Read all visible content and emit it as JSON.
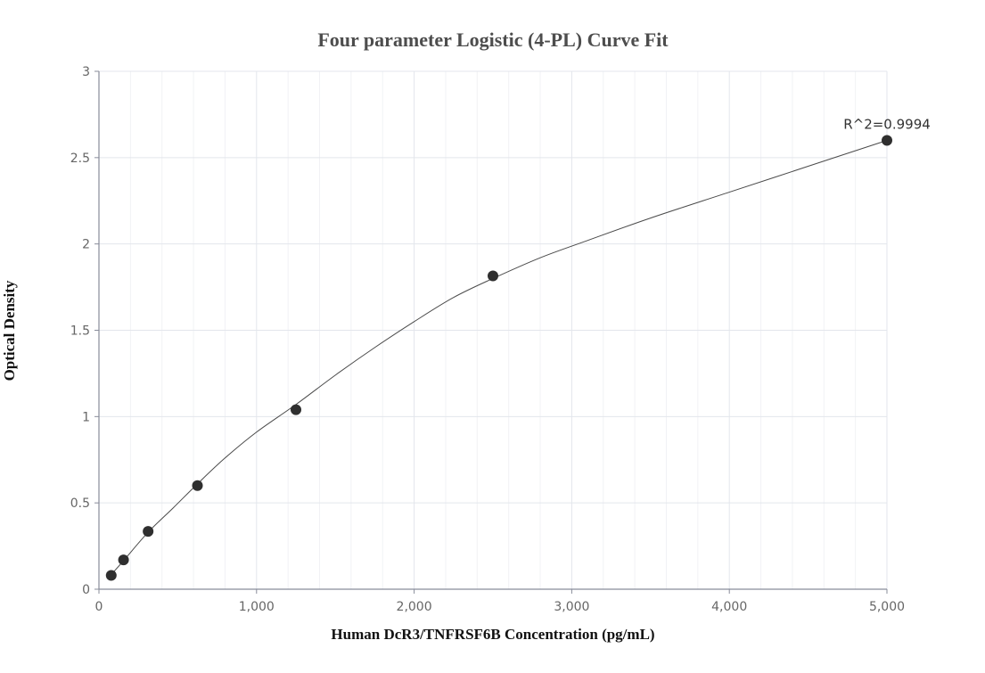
{
  "chart_data": {
    "type": "scatter",
    "title": "Four parameter Logistic (4-PL) Curve Fit",
    "xlabel": "Human DcR3/TNFRSF6B Concentration (pg/mL)",
    "ylabel": "Optical Density",
    "xlim": [
      0,
      5000
    ],
    "ylim": [
      0,
      3
    ],
    "x_ticks": [
      0,
      1000,
      2000,
      3000,
      4000,
      5000
    ],
    "x_tick_labels": [
      "0",
      "1,000",
      "2,000",
      "3,000",
      "4,000",
      "5,000"
    ],
    "y_ticks": [
      0,
      0.5,
      1,
      1.5,
      2,
      2.5,
      3
    ],
    "y_tick_labels": [
      "0",
      "0.5",
      "1",
      "1.5",
      "2",
      "2.5",
      "3"
    ],
    "x_minor_step": 200,
    "grid": true,
    "series": [
      {
        "type": "scatter",
        "x": [
          78,
          156,
          312,
          625,
          1250,
          2500,
          5000
        ],
        "y": [
          0.08,
          0.17,
          0.335,
          0.6,
          1.04,
          1.815,
          2.6
        ]
      },
      {
        "type": "line",
        "x": [
          78,
          156,
          312,
          470,
          625,
          800,
          1000,
          1250,
          1500,
          1750,
          2000,
          2250,
          2500,
          2800,
          3100,
          3500,
          4000,
          4500,
          5000
        ],
        "y": [
          0.085,
          0.165,
          0.33,
          0.47,
          0.61,
          0.76,
          0.91,
          1.07,
          1.24,
          1.4,
          1.55,
          1.69,
          1.8,
          1.92,
          2.02,
          2.15,
          2.3,
          2.45,
          2.6
        ]
      }
    ],
    "annotations": [
      {
        "text": "R^2=0.9994",
        "x": 5000,
        "y": 2.6
      }
    ]
  }
}
